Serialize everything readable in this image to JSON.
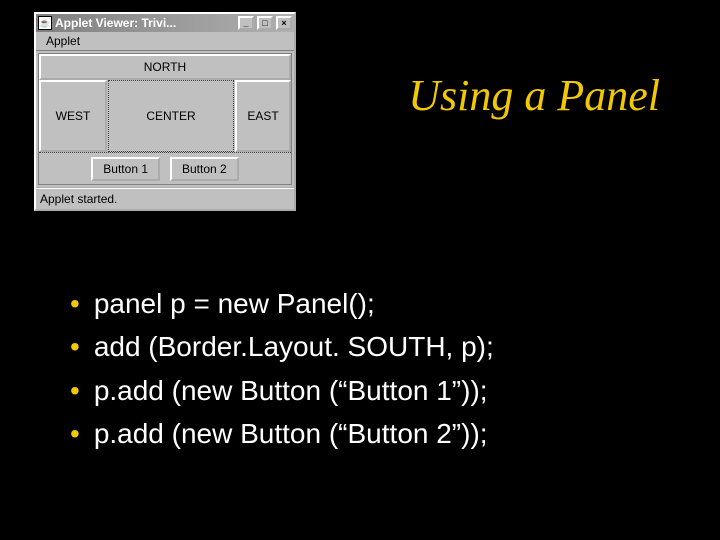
{
  "colors": {
    "slide_bg": "#000000",
    "title_color": "#f2c800",
    "bullet_dot_color": "#f2c800",
    "bullet_text_color": "#ffffff",
    "win_face": "#c0c0c0"
  },
  "slide": {
    "title": "Using a Panel",
    "title_font": "Times New Roman",
    "title_fontsize": 44,
    "bullet_fontsize": 28,
    "bullets": [
      "panel p = new Panel();",
      "add (Border.Layout. SOUTH, p);",
      "p.add (new Button (“Button 1”));",
      "p.add (new Button (“Button 2”));"
    ]
  },
  "applet": {
    "title": "Applet Viewer: Trivi...",
    "icon_glyph": "☕",
    "menu": {
      "item0": "Applet"
    },
    "titlebar_buttons": {
      "minimize": "_",
      "maximize": "□",
      "close": "×"
    },
    "layout": {
      "north": "NORTH",
      "west": "WEST",
      "center": "CENTER",
      "east": "EAST"
    },
    "south_panel": {
      "btn1": "Button 1",
      "btn2": "Button 2"
    },
    "status": "Applet started."
  }
}
